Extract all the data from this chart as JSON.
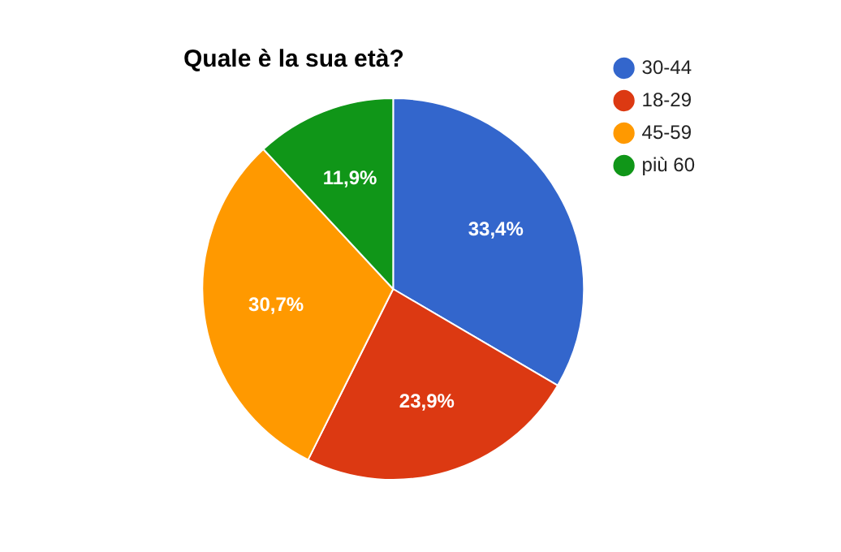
{
  "chart_data": {
    "type": "pie",
    "title": "Quale è la sua età?",
    "categories": [
      "30-44",
      "18-29",
      "45-59",
      "più 60"
    ],
    "values": [
      33.4,
      23.9,
      30.7,
      11.9
    ],
    "value_labels": [
      "33,4%",
      "23,9%",
      "30,7%",
      "11,9%"
    ],
    "colors": [
      "#3366cc",
      "#dc3912",
      "#ff9900",
      "#109618"
    ],
    "legend": "right"
  }
}
